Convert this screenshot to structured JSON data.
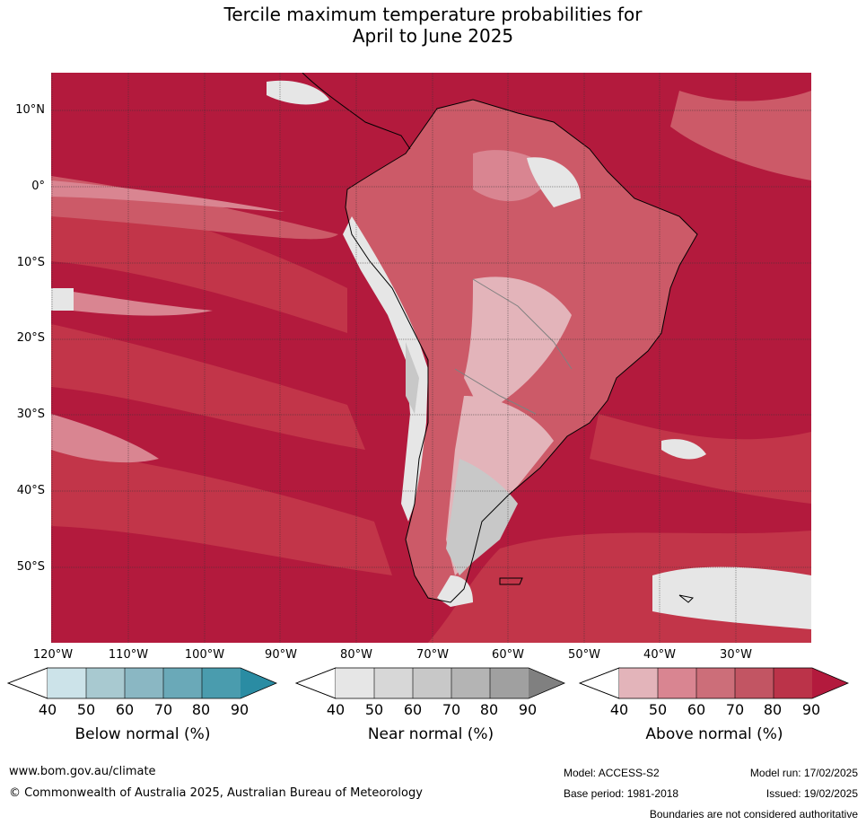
{
  "title": {
    "line1": "Tercile maximum temperature probabilities for",
    "line2": "April to June 2025"
  },
  "map": {
    "latitude_labels": [
      "10°N",
      "0°",
      "10°S",
      "20°S",
      "30°S",
      "40°S",
      "50°S"
    ],
    "longitude_labels": [
      "120°W",
      "110°W",
      "100°W",
      "90°W",
      "80°W",
      "70°W",
      "60°W",
      "50°W",
      "40°W",
      "30°W"
    ],
    "colors": {
      "above_90": "#b31a3d",
      "above_80": "#c23549",
      "above_70": "#cc5a68",
      "above_60": "#d98591",
      "above_50": "#e3b4ba",
      "near_40": "#e6e6e6",
      "near_60": "#c8c8c8",
      "near_80": "#a0a0a0",
      "coast": "#000000",
      "border": "#808080"
    }
  },
  "legend": {
    "below": {
      "title": "Below normal (%)",
      "ticks": [
        "40",
        "50",
        "60",
        "70",
        "80",
        "90"
      ],
      "colors": [
        "#ffffff",
        "#cce3e9",
        "#a8c9d0",
        "#8ab7c3",
        "#6aa9b8",
        "#4a9cae",
        "#2a8ca3"
      ]
    },
    "near": {
      "title": "Near normal (%)",
      "ticks": [
        "40",
        "50",
        "60",
        "70",
        "80",
        "90"
      ],
      "colors": [
        "#ffffff",
        "#e6e6e6",
        "#d7d7d7",
        "#c8c8c8",
        "#b4b4b4",
        "#a0a0a0",
        "#808080"
      ]
    },
    "above": {
      "title": "Above normal (%)",
      "ticks": [
        "40",
        "50",
        "60",
        "70",
        "80",
        "90"
      ],
      "colors": [
        "#ffffff",
        "#e3b4ba",
        "#d98591",
        "#cc6e79",
        "#c25563",
        "#bb3349",
        "#b31a3d"
      ]
    }
  },
  "footer": {
    "url": "www.bom.gov.au/climate",
    "copyright": "© Commonwealth of Australia 2025, Australian Bureau of Meteorology",
    "model": "Model: ACCESS-S2",
    "base_period": "Base period: 1981-2018",
    "model_run": "Model run: 17/02/2025",
    "issued": "Issued: 19/02/2025",
    "disclaimer": "Boundaries are not considered authoritative"
  }
}
